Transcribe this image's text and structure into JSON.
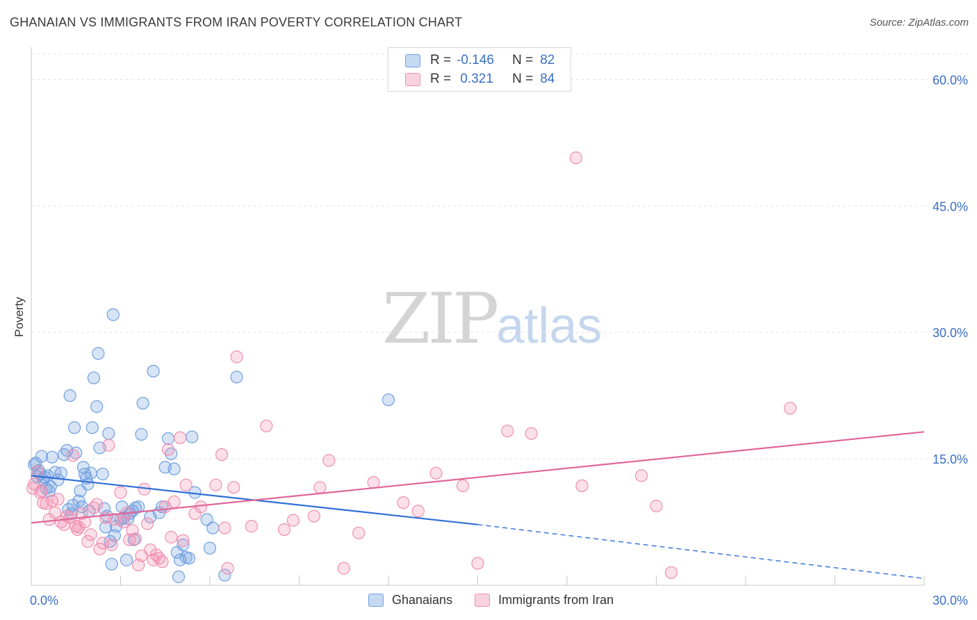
{
  "header": {
    "title": "GHANAIAN VS IMMIGRANTS FROM IRAN POVERTY CORRELATION CHART",
    "source": "Source: ZipAtlas.com"
  },
  "watermark": {
    "zip": "ZIP",
    "atlas": "atlas"
  },
  "legend": {
    "rows": [
      {
        "r_label": "R =",
        "r_value": "-0.146",
        "n_label": "N =",
        "n_value": "82",
        "color": "#6f9fe0"
      },
      {
        "r_label": "R =",
        "r_value": " 0.321",
        "n_label": "N =",
        "n_value": "84",
        "color": "#f08fb0"
      }
    ]
  },
  "bottom_legend": [
    {
      "label": "Ghanaians",
      "color": "#6f9fe0"
    },
    {
      "label": "Immigrants from Iran",
      "color": "#f08fb0"
    }
  ],
  "chart_data": {
    "type": "scatter",
    "title": "GHANAIAN VS IMMIGRANTS FROM IRAN POVERTY CORRELATION CHART",
    "ylabel": "Poverty",
    "xlabel": "",
    "xlim": [
      0,
      30
    ],
    "ylim": [
      0,
      63
    ],
    "x_tick_labels": [
      "0.0%",
      "30.0%"
    ],
    "y_ticks": [
      15,
      30,
      45,
      60
    ],
    "y_tick_labels": [
      "15.0%",
      "30.0%",
      "45.0%",
      "60.0%"
    ],
    "grid": true,
    "series": [
      {
        "name": "Ghanaians",
        "color": "#6f9fe0",
        "trend": {
          "x0": 0,
          "y0": 13.0,
          "x1": 15,
          "y1": 7.2,
          "dash_to": 30,
          "dash_y": 0.8
        },
        "points": [
          [
            0.1,
            14.3
          ],
          [
            0.2,
            12.9
          ],
          [
            0.3,
            13.2
          ],
          [
            0.35,
            15.3
          ],
          [
            0.4,
            12.5
          ],
          [
            0.5,
            11.5
          ],
          [
            0.55,
            13.0
          ],
          [
            0.6,
            11.2
          ],
          [
            0.7,
            15.2
          ],
          [
            0.8,
            13.4
          ],
          [
            0.9,
            12.5
          ],
          [
            1.0,
            13.3
          ],
          [
            1.1,
            15.5
          ],
          [
            1.2,
            16.0
          ],
          [
            1.25,
            9.0
          ],
          [
            1.3,
            22.5
          ],
          [
            1.4,
            9.5
          ],
          [
            1.45,
            18.7
          ],
          [
            1.5,
            15.7
          ],
          [
            1.6,
            10.0
          ],
          [
            1.65,
            11.2
          ],
          [
            1.7,
            9.3
          ],
          [
            1.75,
            14.0
          ],
          [
            1.8,
            13.2
          ],
          [
            1.85,
            12.7
          ],
          [
            1.9,
            12.0
          ],
          [
            1.95,
            8.8
          ],
          [
            2.0,
            13.3
          ],
          [
            2.05,
            18.7
          ],
          [
            2.1,
            24.6
          ],
          [
            2.2,
            21.2
          ],
          [
            2.25,
            27.5
          ],
          [
            2.3,
            16.3
          ],
          [
            2.4,
            13.2
          ],
          [
            2.5,
            6.9
          ],
          [
            2.55,
            8.2
          ],
          [
            2.6,
            18.0
          ],
          [
            2.65,
            5.2
          ],
          [
            2.7,
            2.5
          ],
          [
            2.75,
            32.1
          ],
          [
            2.8,
            5.9
          ],
          [
            2.85,
            7.0
          ],
          [
            3.0,
            7.8
          ],
          [
            3.05,
            9.3
          ],
          [
            3.1,
            8.0
          ],
          [
            3.2,
            3.0
          ],
          [
            3.3,
            8.5
          ],
          [
            3.4,
            8.8
          ],
          [
            3.45,
            5.4
          ],
          [
            3.5,
            9.2
          ],
          [
            3.6,
            9.3
          ],
          [
            3.7,
            17.9
          ],
          [
            3.75,
            21.6
          ],
          [
            4.0,
            8.1
          ],
          [
            4.1,
            25.4
          ],
          [
            4.3,
            8.6
          ],
          [
            4.4,
            9.3
          ],
          [
            4.5,
            14.0
          ],
          [
            4.6,
            17.4
          ],
          [
            4.7,
            15.6
          ],
          [
            4.8,
            13.8
          ],
          [
            4.9,
            3.9
          ],
          [
            4.95,
            1.0
          ],
          [
            5.0,
            3.0
          ],
          [
            5.1,
            4.8
          ],
          [
            5.2,
            3.3
          ],
          [
            5.3,
            3.2
          ],
          [
            5.4,
            17.6
          ],
          [
            5.5,
            11.0
          ],
          [
            5.9,
            7.8
          ],
          [
            6.0,
            4.4
          ],
          [
            6.1,
            6.8
          ],
          [
            6.5,
            1.2
          ],
          [
            6.9,
            24.7
          ],
          [
            12.0,
            22.0
          ],
          [
            0.15,
            14.5
          ],
          [
            0.25,
            13.6
          ],
          [
            0.45,
            12.8
          ],
          [
            0.65,
            11.7
          ],
          [
            1.35,
            8.5
          ],
          [
            3.25,
            7.9
          ],
          [
            2.45,
            9.1
          ]
        ]
      },
      {
        "name": "Immigrants from Iran",
        "color": "#f08fb0",
        "trend": {
          "x0": 0,
          "y0": 7.4,
          "x1": 30,
          "y1": 18.2
        },
        "points": [
          [
            0.1,
            12.0
          ],
          [
            0.2,
            13.5
          ],
          [
            0.3,
            11.0
          ],
          [
            0.4,
            9.8
          ],
          [
            0.5,
            9.7
          ],
          [
            0.6,
            7.8
          ],
          [
            0.7,
            10.0
          ],
          [
            0.8,
            8.6
          ],
          [
            0.9,
            10.2
          ],
          [
            1.0,
            7.5
          ],
          [
            1.1,
            7.2
          ],
          [
            1.2,
            8.2
          ],
          [
            1.3,
            8.0
          ],
          [
            1.4,
            15.4
          ],
          [
            1.5,
            7.0
          ],
          [
            1.6,
            6.9
          ],
          [
            1.7,
            8.5
          ],
          [
            1.8,
            7.5
          ],
          [
            1.9,
            5.2
          ],
          [
            2.0,
            6.0
          ],
          [
            2.1,
            9.2
          ],
          [
            2.2,
            9.6
          ],
          [
            2.3,
            4.3
          ],
          [
            2.4,
            5.0
          ],
          [
            2.5,
            8.0
          ],
          [
            2.6,
            16.6
          ],
          [
            2.7,
            4.8
          ],
          [
            2.8,
            7.8
          ],
          [
            3.0,
            11.0
          ],
          [
            3.1,
            7.5
          ],
          [
            3.2,
            8.6
          ],
          [
            3.3,
            5.4
          ],
          [
            3.4,
            6.5
          ],
          [
            3.5,
            5.5
          ],
          [
            3.6,
            2.4
          ],
          [
            3.7,
            3.5
          ],
          [
            3.8,
            11.4
          ],
          [
            3.9,
            7.3
          ],
          [
            4.0,
            4.2
          ],
          [
            4.1,
            3.0
          ],
          [
            4.2,
            3.6
          ],
          [
            4.3,
            3.2
          ],
          [
            4.4,
            2.8
          ],
          [
            4.5,
            9.3
          ],
          [
            4.6,
            16.1
          ],
          [
            4.7,
            5.7
          ],
          [
            4.8,
            9.9
          ],
          [
            5.0,
            17.5
          ],
          [
            5.1,
            5.3
          ],
          [
            5.2,
            11.9
          ],
          [
            5.5,
            8.5
          ],
          [
            5.7,
            9.3
          ],
          [
            6.2,
            11.9
          ],
          [
            6.4,
            15.5
          ],
          [
            6.5,
            6.8
          ],
          [
            6.6,
            2.0
          ],
          [
            6.8,
            11.6
          ],
          [
            6.9,
            27.1
          ],
          [
            7.4,
            7.0
          ],
          [
            7.9,
            18.9
          ],
          [
            8.5,
            6.6
          ],
          [
            8.8,
            7.7
          ],
          [
            9.5,
            8.2
          ],
          [
            9.7,
            11.6
          ],
          [
            10.0,
            14.8
          ],
          [
            10.5,
            2.0
          ],
          [
            11.0,
            6.2
          ],
          [
            11.5,
            12.2
          ],
          [
            12.5,
            9.8
          ],
          [
            13.0,
            8.8
          ],
          [
            13.6,
            13.3
          ],
          [
            14.5,
            11.8
          ],
          [
            15.0,
            2.6
          ],
          [
            16.0,
            18.3
          ],
          [
            16.8,
            18.0
          ],
          [
            18.3,
            50.7
          ],
          [
            18.5,
            11.8
          ],
          [
            20.5,
            13.0
          ],
          [
            21.0,
            9.4
          ],
          [
            21.5,
            1.5
          ],
          [
            25.5,
            21.0
          ],
          [
            0.05,
            11.5
          ],
          [
            0.35,
            11.2
          ],
          [
            1.55,
            6.6
          ]
        ]
      }
    ]
  }
}
